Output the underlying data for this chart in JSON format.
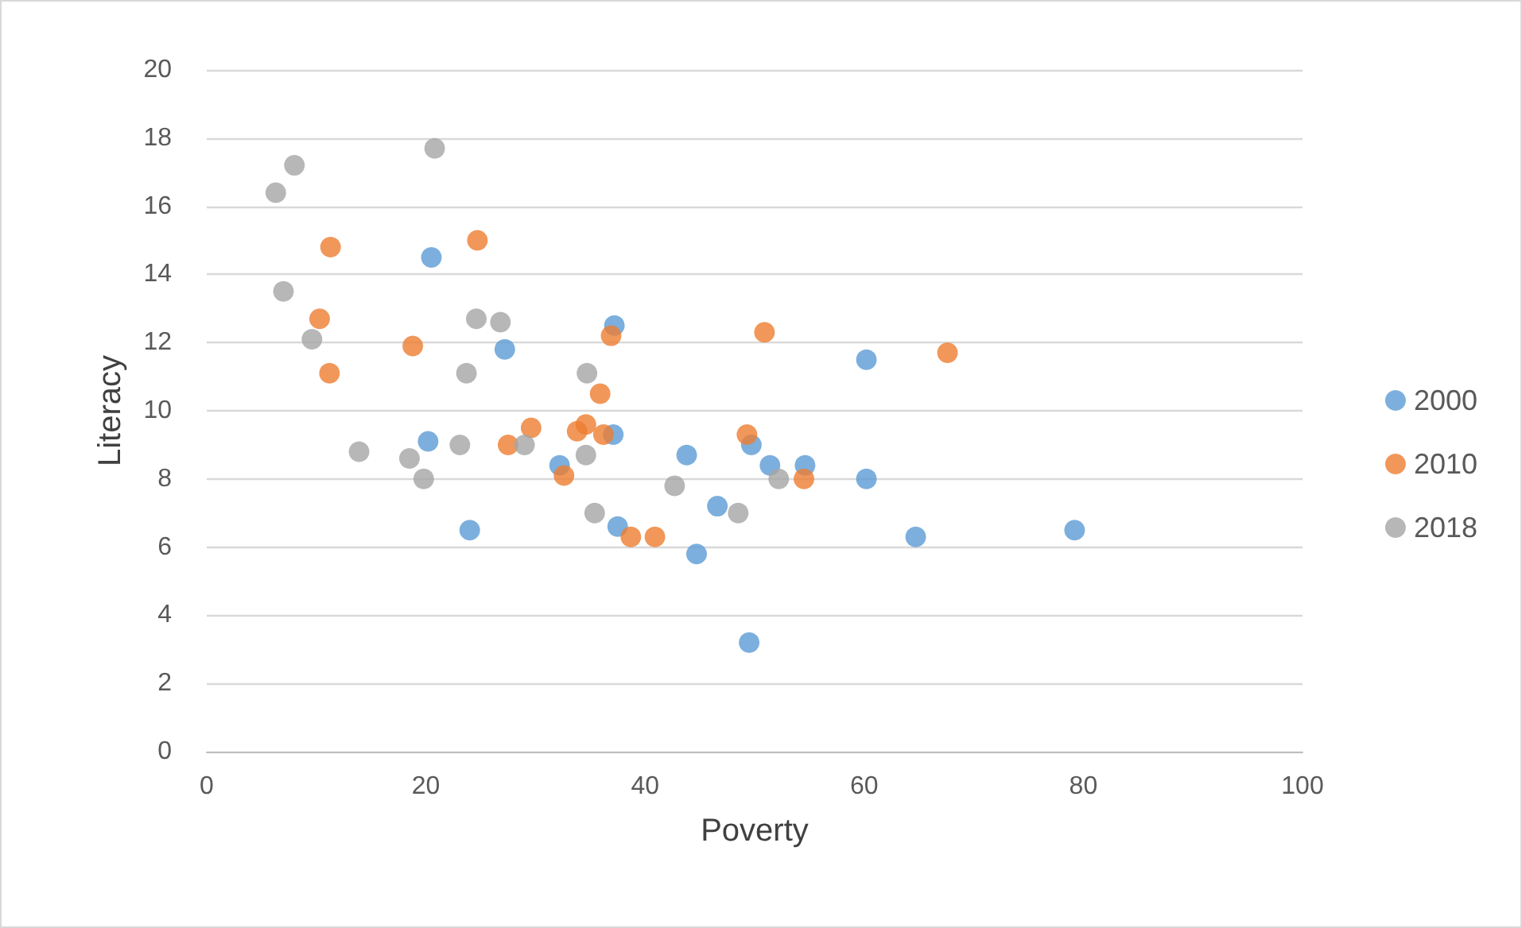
{
  "chart_data": {
    "type": "scatter",
    "xlabel": "Poverty",
    "ylabel": "Literacy",
    "xlim": [
      0,
      100
    ],
    "xticks": [
      0,
      20,
      40,
      60,
      80,
      100
    ],
    "ylim": [
      0,
      20
    ],
    "yticks": [
      0,
      2,
      4,
      6,
      8,
      10,
      12,
      14,
      16,
      18,
      20
    ],
    "grid": "y",
    "legend": "right",
    "marker": "circle",
    "series": [
      {
        "name": "2000",
        "color": "#5b9bd5",
        "x": [
          20.5,
          27.2,
          37.2,
          20.2,
          37.1,
          32.2,
          24.0,
          37.5,
          60.2,
          43.8,
          49.7,
          51.4,
          54.6,
          60.2,
          46.6,
          44.7,
          64.7,
          79.2,
          49.5
        ],
        "values": [
          14.5,
          11.8,
          12.5,
          9.1,
          9.3,
          8.4,
          6.5,
          6.6,
          11.5,
          8.7,
          9.0,
          8.4,
          8.4,
          8.0,
          7.2,
          5.8,
          6.3,
          6.5,
          3.2
        ]
      },
      {
        "name": "2010",
        "color": "#ed7d31",
        "x": [
          11.3,
          24.7,
          10.3,
          11.2,
          18.8,
          36.9,
          35.9,
          29.6,
          27.5,
          33.8,
          34.6,
          36.2,
          32.6,
          38.7,
          40.9,
          50.9,
          67.6,
          49.3,
          54.5
        ],
        "values": [
          14.8,
          15.0,
          12.7,
          11.1,
          11.9,
          12.2,
          10.5,
          9.5,
          9.0,
          9.4,
          9.6,
          9.3,
          8.1,
          6.3,
          6.3,
          12.3,
          11.7,
          9.3,
          8.0
        ]
      },
      {
        "name": "2018",
        "color": "#a5a5a5",
        "x": [
          20.8,
          8.0,
          6.3,
          7.0,
          9.6,
          24.6,
          26.8,
          23.7,
          34.7,
          13.9,
          18.5,
          19.8,
          23.1,
          29.0,
          34.6,
          35.4,
          42.7,
          52.2,
          48.5
        ],
        "values": [
          17.7,
          17.2,
          16.4,
          13.5,
          12.1,
          12.7,
          12.6,
          11.1,
          11.1,
          8.8,
          8.6,
          8.0,
          9.0,
          9.0,
          8.7,
          7.0,
          7.8,
          8.0,
          7.0
        ]
      }
    ]
  }
}
